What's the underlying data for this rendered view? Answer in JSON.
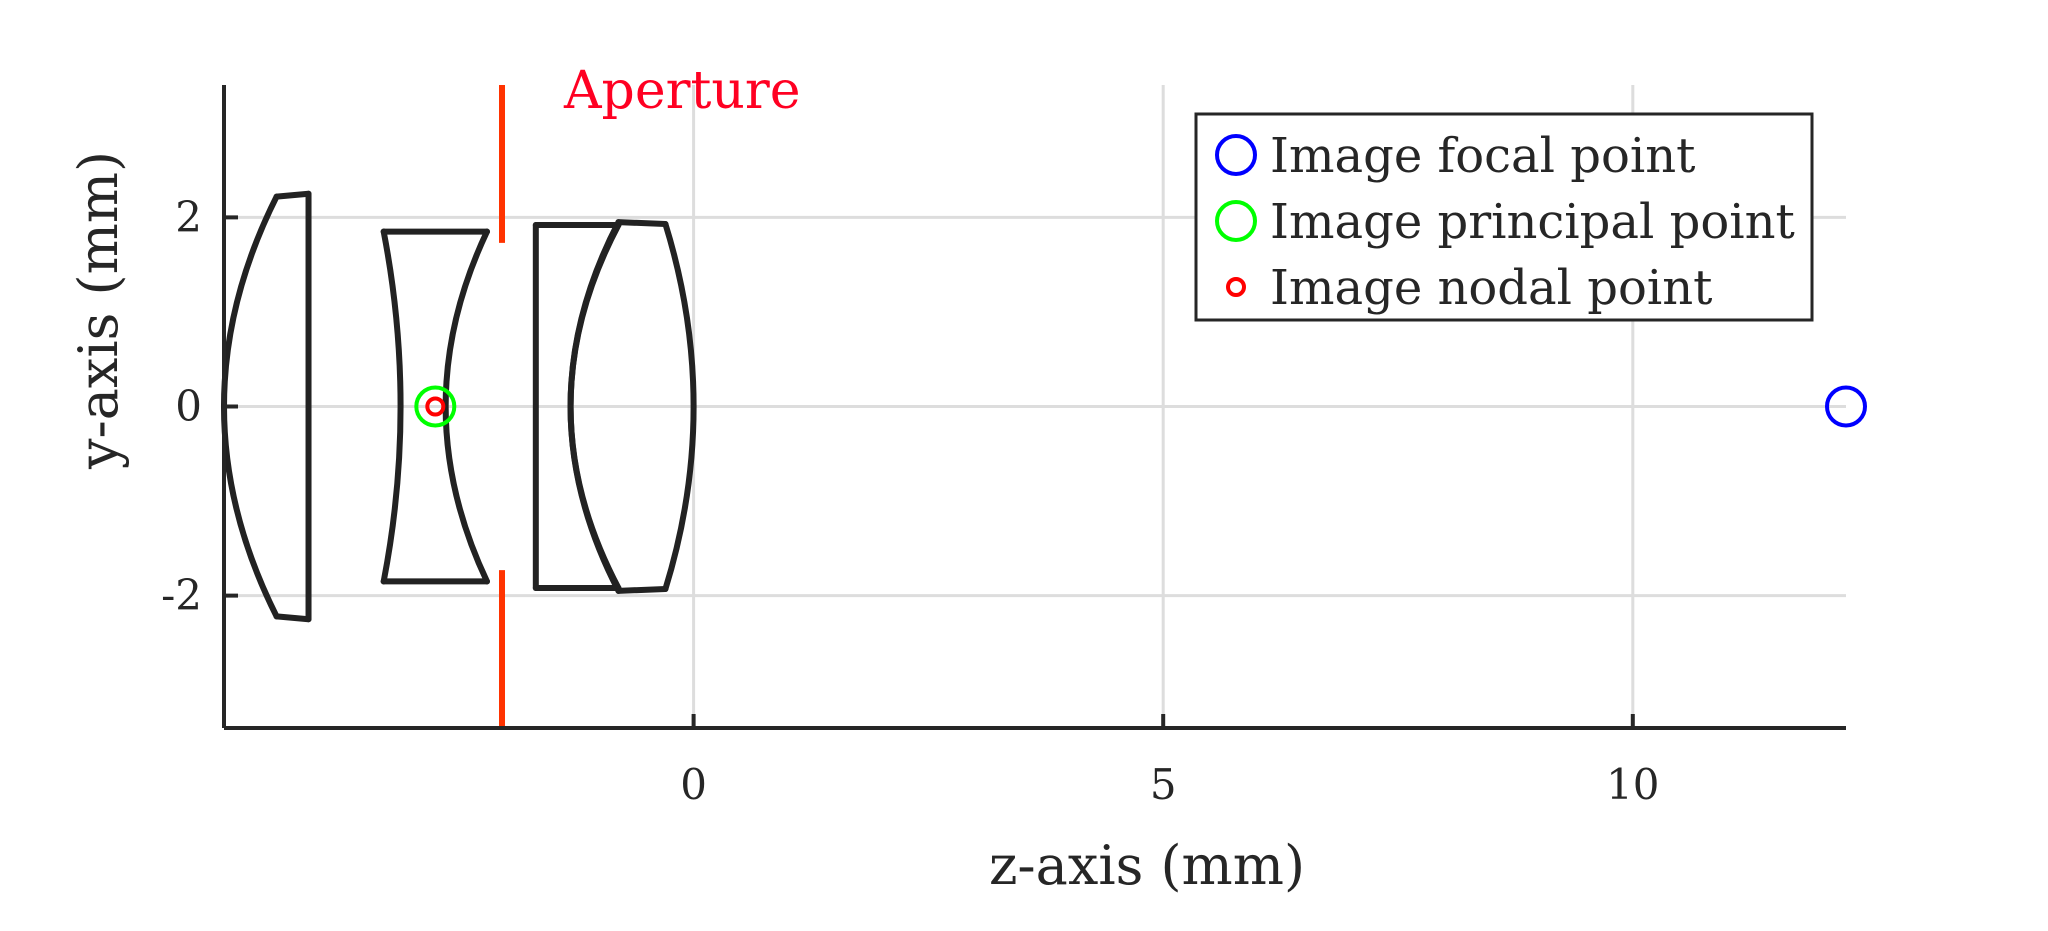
{
  "chart_data": {
    "type": "scatter",
    "title": "",
    "xlabel": "z-axis (mm)",
    "ylabel": "y-axis (mm)",
    "xlim": [
      -5,
      12.27
    ],
    "ylim": [
      -3.4,
      3.4
    ],
    "x_ticks": [
      0,
      5,
      10
    ],
    "x_tick_labels": [
      "0",
      "5",
      "10"
    ],
    "y_ticks": [
      -2,
      0,
      2
    ],
    "y_tick_labels": [
      "-2",
      "0",
      "2"
    ],
    "grid": true,
    "legend_position": "top-right",
    "colors": {
      "focal": "#0000ff",
      "principal": "#00ff00",
      "nodal": "#ff0000",
      "aperture": "#ff3300",
      "aperture_label": "#ff0022",
      "lens": "#222222",
      "grid": "#dddddd",
      "axis": "#262626"
    },
    "series": [
      {
        "name": "Image focal point",
        "marker": "circle-large",
        "color": "#0000ff",
        "points": [
          [
            12.27,
            0
          ]
        ]
      },
      {
        "name": "Image principal point",
        "marker": "circle-large",
        "color": "#00ff00",
        "points": [
          [
            -2.75,
            0
          ]
        ]
      },
      {
        "name": "Image nodal point",
        "marker": "circle-small",
        "color": "#ff0000",
        "points": [
          [
            -2.75,
            0
          ]
        ]
      }
    ],
    "aperture": {
      "label": "Aperture",
      "z": -2.04,
      "opening_half_height": 1.73,
      "extent": [
        -3.4,
        3.4
      ]
    },
    "lenses": [
      {
        "front": {
          "z_vertex": -5.0,
          "z_edge": -4.44,
          "half_height": 2.22
        },
        "back": {
          "z_vertex": -4.1,
          "z_edge": -4.1,
          "half_height": 2.25
        }
      },
      {
        "front": {
          "z_vertex": -3.12,
          "z_edge": -3.3,
          "half_height": 1.85
        },
        "back": {
          "z_vertex": -2.64,
          "z_edge": -2.2,
          "half_height": 1.85
        }
      },
      {
        "front": {
          "z_vertex": -1.68,
          "z_edge": -1.68,
          "half_height": 1.92
        },
        "back": {
          "z_vertex": -1.31,
          "z_edge": -0.8,
          "half_height": 1.92
        }
      },
      {
        "front": {
          "z_vertex": -1.31,
          "z_edge": -0.8,
          "half_height": 1.95
        },
        "back": {
          "z_vertex": 0.0,
          "z_edge": -0.3,
          "half_height": 1.93
        }
      }
    ]
  }
}
